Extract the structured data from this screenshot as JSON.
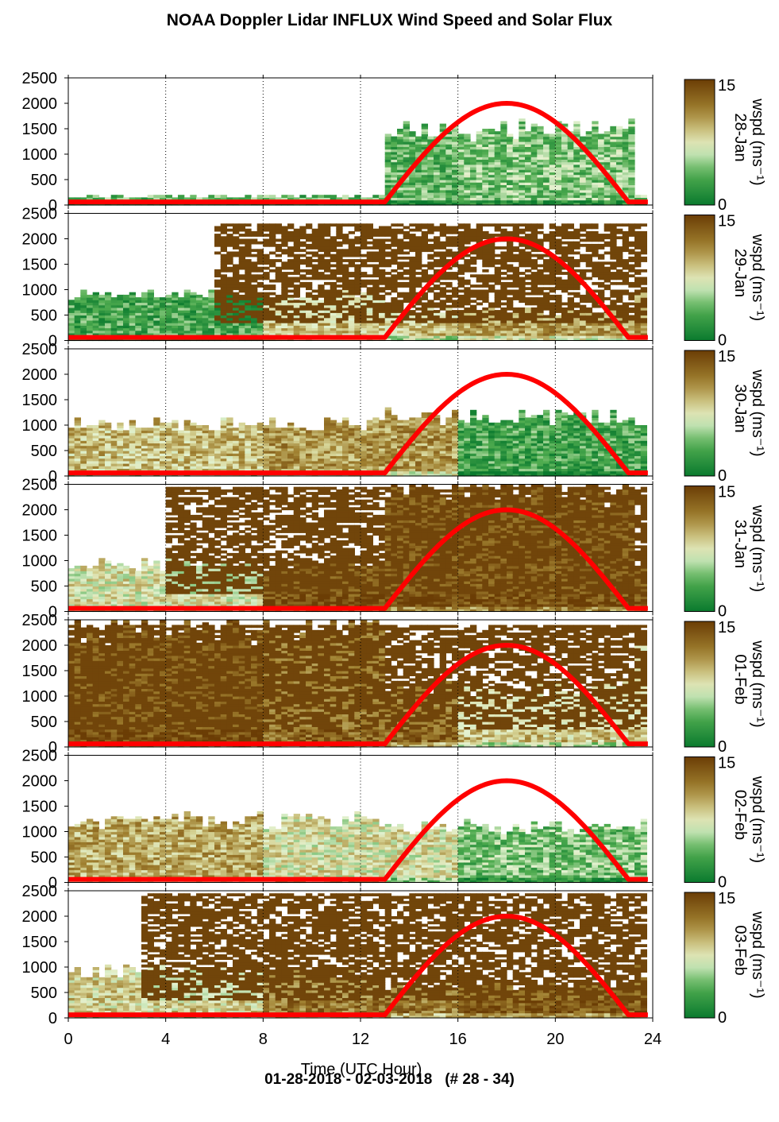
{
  "title": "NOAA Doppler Lidar INFLUX Wind Speed and Solar Flux",
  "footer": "01-28-2018 - 02-03-2018   (# 28 - 34)",
  "chart_data": {
    "type": "heatmap",
    "title": "NOAA Doppler Lidar INFLUX Wind Speed and Solar Flux",
    "xlabel": "Time (UTC Hour)",
    "xlim": [
      0,
      24
    ],
    "xticks": [
      0,
      4,
      8,
      12,
      16,
      20,
      24
    ],
    "ylim": [
      0,
      2500
    ],
    "yticks": [
      0,
      500,
      1000,
      1500,
      2000,
      2500
    ],
    "colorbar": {
      "label": "wspd (ms⁻¹)",
      "min": 0,
      "max": 15,
      "tick_min": "0",
      "tick_max": "15"
    },
    "colors": {
      "low": "#0a7a2e",
      "mid": "#f2f6e6",
      "high": "#6b3d05",
      "solar_curve": "#ff0000"
    },
    "grid": "dotted vertical lines every 4 h",
    "solar_flux": {
      "color": "#ff0000",
      "sunrise_hour": 13,
      "sunset_hour": 23,
      "peak_hour": 18,
      "peak_height": 2000
    },
    "panels": [
      {
        "day_label": "28-Jan",
        "top": 0.15,
        "top_day": 1.45,
        "mean_low": 0.25,
        "mean_mid": 0.25,
        "mean_high": 0.3,
        "highwind_start": 99,
        "highwind_top": 0
      },
      {
        "day_label": "29-Jan",
        "top": 0.85,
        "top_day": 0.55,
        "mean_low": 0.2,
        "mean_mid": 0.6,
        "mean_high": 0.7,
        "highwind_start": 6,
        "highwind_top": 2300
      },
      {
        "day_label": "30-Jan",
        "top": 1.0,
        "top_day": 1.15,
        "mean_low": 0.6,
        "mean_mid": 0.7,
        "mean_high": 0.2,
        "highwind_start": 99,
        "highwind_top": 0
      },
      {
        "day_label": "31-Jan",
        "top": 0.9,
        "top_day": 2.4,
        "mean_low": 0.5,
        "mean_mid": 0.95,
        "mean_high": 0.95,
        "highwind_start": 4,
        "highwind_top": 2450
      },
      {
        "day_label": "01-Feb",
        "top": 2.3,
        "top_day": 1.1,
        "mean_low": 0.95,
        "mean_mid": 0.85,
        "mean_high": 0.6,
        "highwind_start": 0,
        "highwind_top": 2400
      },
      {
        "day_label": "02-Feb",
        "top": 1.2,
        "top_day": 1.05,
        "mean_low": 0.65,
        "mean_mid": 0.5,
        "mean_high": 0.3,
        "highwind_start": 99,
        "highwind_top": 0
      },
      {
        "day_label": "03-Feb",
        "top": 0.9,
        "top_day": 0.6,
        "mean_low": 0.55,
        "mean_mid": 0.8,
        "mean_high": 0.9,
        "highwind_start": 3,
        "highwind_top": 2450
      }
    ]
  }
}
